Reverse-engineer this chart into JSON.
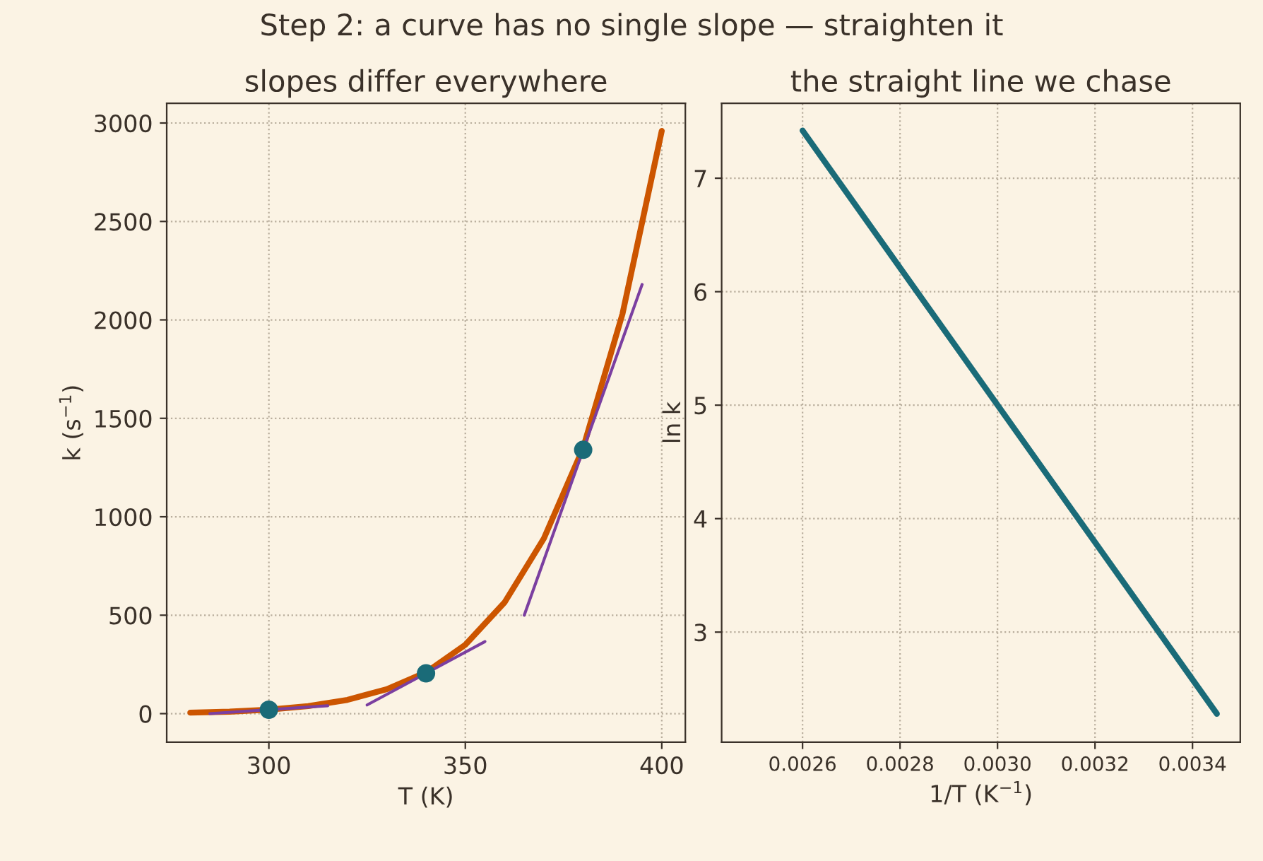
{
  "chart_data": [
    {
      "type": "line",
      "title": "Step 2: a curve has no single slope — straighten it",
      "subtitle": "slopes differ everywhere",
      "xlabel": "T (K)",
      "ylabel": "k (s$^{−1}$)",
      "xlim": [
        274,
        406
      ],
      "ylim": [
        -145,
        3100
      ],
      "xticks": [
        300,
        350,
        400
      ],
      "yticks": [
        0,
        500,
        1000,
        1500,
        2000,
        2500,
        3000
      ],
      "grid": true,
      "series": [
        {
          "color": "#cc5500",
          "x": [
            280,
            290,
            300,
            310,
            320,
            330,
            340,
            350,
            360,
            370,
            380,
            390,
            400
          ],
          "values": [
            5,
            10,
            20,
            38,
            70,
            124,
            210,
            350,
            565,
            890,
            1350,
            2030,
            2960
          ]
        },
        {
          "color": "#7b3fa0",
          "x": [
            285,
            315
          ],
          "values": [
            0,
            40
          ]
        },
        {
          "color": "#7b3fa0",
          "x": [
            325,
            355
          ],
          "values": [
            44,
            366
          ]
        },
        {
          "color": "#7b3fa0",
          "x": [
            365,
            395
          ],
          "values": [
            500,
            2180
          ]
        },
        {
          "type": "scatter",
          "color": "#1a6b78",
          "x": [
            300,
            340,
            380
          ],
          "values": [
            20,
            205,
            1340
          ],
          "marker": "circle"
        }
      ]
    },
    {
      "type": "line",
      "subtitle": "the straight line we chase",
      "xlabel": "1/T (K$^{−1}$)",
      "ylabel": "ln k",
      "xlim": [
        0.002434,
        0.003498
      ],
      "ylim": [
        2.03,
        7.66
      ],
      "xticks": [
        {
          "value": 0.0026,
          "label": "0.0026"
        },
        {
          "value": 0.0028,
          "label": "0.0028"
        },
        {
          "value": 0.003,
          "label": "0.0030"
        },
        {
          "value": 0.0032,
          "label": "0.0032"
        },
        {
          "value": 0.0034,
          "label": "0.0034"
        }
      ],
      "yticks": [
        3,
        4,
        5,
        6,
        7
      ],
      "grid": true,
      "series": [
        {
          "color": "#1a6b78",
          "x": [
            0.0026,
            0.00345
          ],
          "values": [
            7.42,
            2.28
          ]
        }
      ]
    }
  ]
}
